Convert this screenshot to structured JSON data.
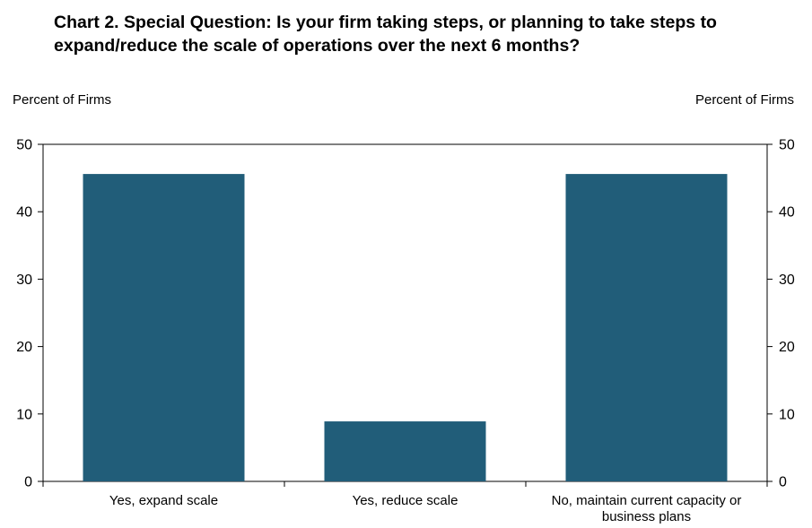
{
  "chart_data": {
    "type": "bar",
    "title_lines": [
      "Chart 2. Special Question: Is your firm taking steps, or planning to take steps to",
      "expand/reduce the scale of operations over the next 6 months?"
    ],
    "ylabel_left": "Percent of Firms",
    "ylabel_right": "Percent of Firms",
    "categories": [
      [
        "Yes, expand scale"
      ],
      [
        "Yes, reduce scale"
      ],
      [
        "No, maintain current capacity or",
        "business plans"
      ]
    ],
    "values": [
      45.6,
      8.9,
      45.6
    ],
    "ylim": [
      0,
      50
    ],
    "yticks": [
      0,
      10,
      20,
      30,
      40,
      50
    ],
    "bar_color": "#215d79",
    "grid": false,
    "legend": "none"
  }
}
